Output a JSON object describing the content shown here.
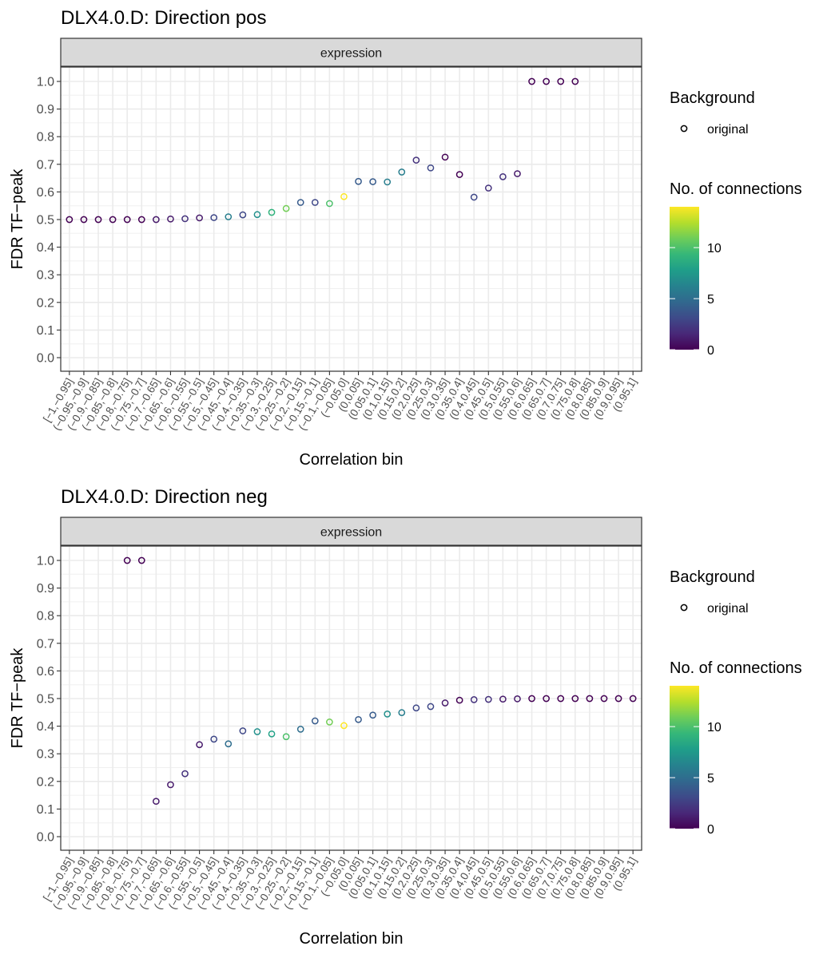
{
  "chart_data": [
    {
      "type": "scatter",
      "title": "DLX4.0.D: Direction pos",
      "facet_label": "expression",
      "xlabel": "Correlation bin",
      "ylabel": "FDR TF−peak",
      "ylim": [
        0,
        1
      ],
      "y_ticks": [
        "0.0",
        "0.1",
        "0.2",
        "0.3",
        "0.4",
        "0.5",
        "0.6",
        "0.7",
        "0.8",
        "0.9",
        "1.0"
      ],
      "categories": [
        "[−1,−0.95]",
        "(−0.95,−0.9]",
        "(−0.9,−0.85]",
        "(−0.85,−0.8]",
        "(−0.8,−0.75]",
        "(−0.75,−0.7]",
        "(−0.7,−0.65]",
        "(−0.65,−0.6]",
        "(−0.6,−0.55]",
        "(−0.55,−0.5]",
        "(−0.5,−0.45]",
        "(−0.45,−0.4]",
        "(−0.4,−0.35]",
        "(−0.35,−0.3]",
        "(−0.3,−0.25]",
        "(−0.25,−0.2]",
        "(−0.2,−0.15]",
        "(−0.15,−0.1]",
        "(−0.1,−0.05]",
        "(−0.05,0]",
        "(0,0.05]",
        "(0.05,0.1]",
        "(0.1,0.15]",
        "(0.15,0.2]",
        "(0.2,0.25]",
        "(0.25,0.3]",
        "(0.3,0.35]",
        "(0.35,0.4]",
        "(0.4,0.45]",
        "(0.45,0.5]",
        "(0.5,0.55]",
        "(0.55,0.6]",
        "(0.6,0.65]",
        "(0.65,0.7]",
        "(0.7,0.75]",
        "(0.75,0.8]",
        "(0.8,0.85]",
        "(0.85,0.9]",
        "(0.9,0.95]",
        "(0.95,1]"
      ],
      "points": [
        {
          "x": "[−1,−0.95]",
          "y": 0.5,
          "n": 0
        },
        {
          "x": "(−0.95,−0.9]",
          "y": 0.5,
          "n": 0
        },
        {
          "x": "(−0.9,−0.85]",
          "y": 0.5,
          "n": 0
        },
        {
          "x": "(−0.85,−0.8]",
          "y": 0.5,
          "n": 0
        },
        {
          "x": "(−0.8,−0.75]",
          "y": 0.5,
          "n": 0
        },
        {
          "x": "(−0.75,−0.7]",
          "y": 0.5,
          "n": 0
        },
        {
          "x": "(−0.7,−0.65]",
          "y": 0.5,
          "n": 1
        },
        {
          "x": "(−0.65,−0.6]",
          "y": 0.502,
          "n": 1
        },
        {
          "x": "(−0.6,−0.55]",
          "y": 0.503,
          "n": 2
        },
        {
          "x": "(−0.55,−0.5]",
          "y": 0.506,
          "n": 1
        },
        {
          "x": "(−0.5,−0.45]",
          "y": 0.507,
          "n": 3
        },
        {
          "x": "(−0.45,−0.4]",
          "y": 0.51,
          "n": 6
        },
        {
          "x": "(−0.4,−0.35]",
          "y": 0.517,
          "n": 3
        },
        {
          "x": "(−0.35,−0.3]",
          "y": 0.518,
          "n": 7
        },
        {
          "x": "(−0.3,−0.25]",
          "y": 0.526,
          "n": 9
        },
        {
          "x": "(−0.25,−0.2]",
          "y": 0.54,
          "n": 11
        },
        {
          "x": "(−0.2,−0.15]",
          "y": 0.562,
          "n": 4
        },
        {
          "x": "(−0.15,−0.1]",
          "y": 0.562,
          "n": 3
        },
        {
          "x": "(−0.1,−0.05]",
          "y": 0.558,
          "n": 10
        },
        {
          "x": "(−0.05,0]",
          "y": 0.583,
          "n": 14
        },
        {
          "x": "(0,0.05]",
          "y": 0.638,
          "n": 4
        },
        {
          "x": "(0.05,0.1]",
          "y": 0.637,
          "n": 4
        },
        {
          "x": "(0.1,0.15]",
          "y": 0.636,
          "n": 6
        },
        {
          "x": "(0.15,0.2]",
          "y": 0.672,
          "n": 6
        },
        {
          "x": "(0.2,0.25]",
          "y": 0.715,
          "n": 2
        },
        {
          "x": "(0.25,0.3]",
          "y": 0.687,
          "n": 3
        },
        {
          "x": "(0.3,0.35]",
          "y": 0.726,
          "n": 0
        },
        {
          "x": "(0.35,0.4]",
          "y": 0.663,
          "n": 0
        },
        {
          "x": "(0.4,0.45]",
          "y": 0.581,
          "n": 3
        },
        {
          "x": "(0.45,0.5]",
          "y": 0.614,
          "n": 2
        },
        {
          "x": "(0.5,0.55]",
          "y": 0.655,
          "n": 2
        },
        {
          "x": "(0.55,0.6]",
          "y": 0.666,
          "n": 1
        },
        {
          "x": "(0.6,0.65]",
          "y": 1.0,
          "n": 0
        },
        {
          "x": "(0.65,0.7]",
          "y": 1.0,
          "n": 0
        },
        {
          "x": "(0.7,0.75]",
          "y": 1.0,
          "n": 0
        },
        {
          "x": "(0.75,0.8]",
          "y": 1.0,
          "n": 0
        }
      ]
    },
    {
      "type": "scatter",
      "title": "DLX4.0.D: Direction neg",
      "facet_label": "expression",
      "xlabel": "Correlation bin",
      "ylabel": "FDR TF−peak",
      "ylim": [
        0,
        1
      ],
      "y_ticks": [
        "0.0",
        "0.1",
        "0.2",
        "0.3",
        "0.4",
        "0.5",
        "0.6",
        "0.7",
        "0.8",
        "0.9",
        "1.0"
      ],
      "categories": [
        "[−1,−0.95]",
        "(−0.95,−0.9]",
        "(−0.9,−0.85]",
        "(−0.85,−0.8]",
        "(−0.8,−0.75]",
        "(−0.75,−0.7]",
        "(−0.7,−0.65]",
        "(−0.65,−0.6]",
        "(−0.6,−0.55]",
        "(−0.55,−0.5]",
        "(−0.5,−0.45]",
        "(−0.45,−0.4]",
        "(−0.4,−0.35]",
        "(−0.35,−0.3]",
        "(−0.3,−0.25]",
        "(−0.25,−0.2]",
        "(−0.2,−0.15]",
        "(−0.15,−0.1]",
        "(−0.1,−0.05]",
        "(−0.05,0]",
        "(0,0.05]",
        "(0.05,0.1]",
        "(0.1,0.15]",
        "(0.15,0.2]",
        "(0.2,0.25]",
        "(0.25,0.3]",
        "(0.3,0.35]",
        "(0.35,0.4]",
        "(0.4,0.45]",
        "(0.45,0.5]",
        "(0.5,0.55]",
        "(0.55,0.6]",
        "(0.6,0.65]",
        "(0.65,0.7]",
        "(0.7,0.75]",
        "(0.75,0.8]",
        "(0.8,0.85]",
        "(0.85,0.9]",
        "(0.9,0.95]",
        "(0.95,1]"
      ],
      "points": [
        {
          "x": "(−0.8,−0.75]",
          "y": 1.0,
          "n": 0
        },
        {
          "x": "(−0.75,−0.7]",
          "y": 1.0,
          "n": 0
        },
        {
          "x": "(−0.7,−0.65]",
          "y": 0.128,
          "n": 1
        },
        {
          "x": "(−0.65,−0.6]",
          "y": 0.188,
          "n": 1
        },
        {
          "x": "(−0.6,−0.55]",
          "y": 0.228,
          "n": 2
        },
        {
          "x": "(−0.55,−0.5]",
          "y": 0.333,
          "n": 1
        },
        {
          "x": "(−0.5,−0.45]",
          "y": 0.353,
          "n": 3
        },
        {
          "x": "(−0.45,−0.4]",
          "y": 0.336,
          "n": 5
        },
        {
          "x": "(−0.4,−0.35]",
          "y": 0.383,
          "n": 3
        },
        {
          "x": "(−0.35,−0.3]",
          "y": 0.38,
          "n": 7
        },
        {
          "x": "(−0.3,−0.25]",
          "y": 0.372,
          "n": 8
        },
        {
          "x": "(−0.25,−0.2]",
          "y": 0.362,
          "n": 10
        },
        {
          "x": "(−0.2,−0.15]",
          "y": 0.389,
          "n": 5
        },
        {
          "x": "(−0.15,−0.1]",
          "y": 0.419,
          "n": 4
        },
        {
          "x": "(−0.1,−0.05]",
          "y": 0.415,
          "n": 11
        },
        {
          "x": "(−0.05,0]",
          "y": 0.402,
          "n": 14
        },
        {
          "x": "(0,0.05]",
          "y": 0.424,
          "n": 4
        },
        {
          "x": "(0.05,0.1]",
          "y": 0.44,
          "n": 4
        },
        {
          "x": "(0.1,0.15]",
          "y": 0.444,
          "n": 7
        },
        {
          "x": "(0.15,0.2]",
          "y": 0.449,
          "n": 6
        },
        {
          "x": "(0.2,0.25]",
          "y": 0.466,
          "n": 3
        },
        {
          "x": "(0.25,0.3]",
          "y": 0.471,
          "n": 3
        },
        {
          "x": "(0.3,0.35]",
          "y": 0.484,
          "n": 1
        },
        {
          "x": "(0.35,0.4]",
          "y": 0.494,
          "n": 0
        },
        {
          "x": "(0.4,0.45]",
          "y": 0.496,
          "n": 2
        },
        {
          "x": "(0.45,0.5]",
          "y": 0.497,
          "n": 2
        },
        {
          "x": "(0.5,0.55]",
          "y": 0.498,
          "n": 1
        },
        {
          "x": "(0.55,0.6]",
          "y": 0.499,
          "n": 1
        },
        {
          "x": "(0.6,0.65]",
          "y": 0.5,
          "n": 0
        },
        {
          "x": "(0.65,0.7]",
          "y": 0.5,
          "n": 0
        },
        {
          "x": "(0.7,0.75]",
          "y": 0.5,
          "n": 0
        },
        {
          "x": "(0.75,0.8]",
          "y": 0.5,
          "n": 0
        },
        {
          "x": "(0.8,0.85]",
          "y": 0.5,
          "n": 0
        },
        {
          "x": "(0.85,0.9]",
          "y": 0.5,
          "n": 0
        },
        {
          "x": "(0.9,0.95]",
          "y": 0.5,
          "n": 0
        },
        {
          "x": "(0.95,1]",
          "y": 0.5,
          "n": 0
        }
      ]
    }
  ],
  "legend": {
    "shape_title": "Background",
    "shape_label": "original",
    "color_title": "No. of connections",
    "color_range": [
      0,
      14
    ],
    "color_ticks": [
      "0",
      "5",
      "10"
    ],
    "colors": [
      "#440154",
      "#482878",
      "#3E4A89",
      "#31688E",
      "#26828E",
      "#1F9E89",
      "#35B779",
      "#6DCD59",
      "#B4DE2C",
      "#FDE725"
    ]
  }
}
